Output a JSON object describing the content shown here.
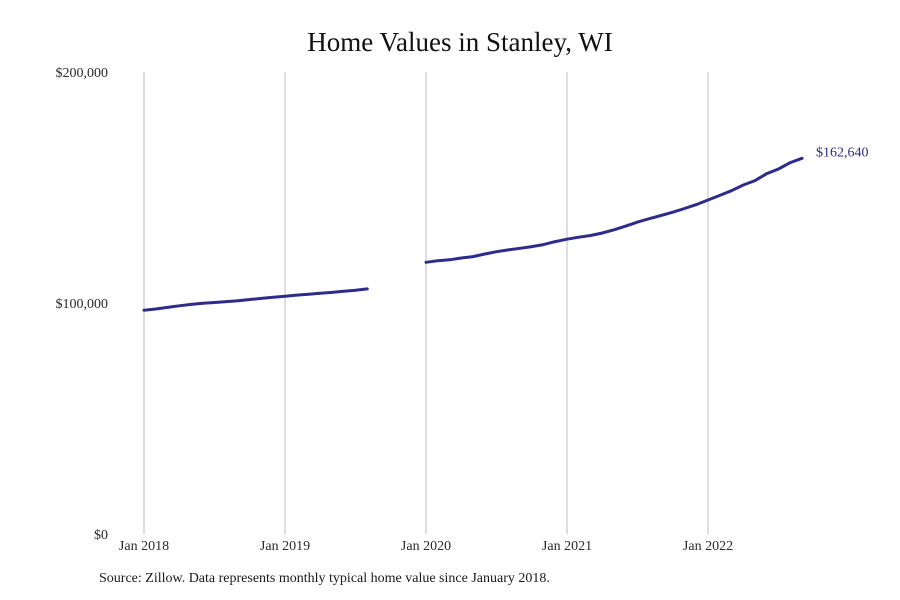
{
  "chart_data": {
    "type": "line",
    "title": "Home Values in Stanley, WI",
    "xlabel": "",
    "ylabel": "",
    "ylim": [
      0,
      200000
    ],
    "y_ticks": [
      {
        "value": 0,
        "label": "$0"
      },
      {
        "value": 100000,
        "label": "$100,000"
      },
      {
        "value": 200000,
        "label": "$200,000"
      }
    ],
    "xlim": [
      "2018-01",
      "2022-12"
    ],
    "x_ticks": [
      {
        "value": "2018-01",
        "label": "Jan 2018"
      },
      {
        "value": "2019-01",
        "label": "Jan 2019"
      },
      {
        "value": "2020-01",
        "label": "Jan 2020"
      },
      {
        "value": "2021-01",
        "label": "Jan 2021"
      },
      {
        "value": "2022-01",
        "label": "Jan 2022"
      }
    ],
    "grid": "vertical",
    "series": [
      {
        "color": "#2e2b8c",
        "segments": [
          [
            {
              "x": "2018-01",
              "y": 96900
            },
            {
              "x": "2018-02",
              "y": 97400
            },
            {
              "x": "2018-03",
              "y": 98100
            },
            {
              "x": "2018-04",
              "y": 98800
            },
            {
              "x": "2018-05",
              "y": 99400
            },
            {
              "x": "2018-06",
              "y": 99900
            },
            {
              "x": "2018-07",
              "y": 100200
            },
            {
              "x": "2018-08",
              "y": 100600
            },
            {
              "x": "2018-09",
              "y": 101000
            },
            {
              "x": "2018-10",
              "y": 101500
            },
            {
              "x": "2018-11",
              "y": 102000
            },
            {
              "x": "2018-12",
              "y": 102500
            },
            {
              "x": "2019-01",
              "y": 102900
            },
            {
              "x": "2019-02",
              "y": 103400
            },
            {
              "x": "2019-03",
              "y": 103800
            },
            {
              "x": "2019-04",
              "y": 104200
            },
            {
              "x": "2019-05",
              "y": 104600
            },
            {
              "x": "2019-06",
              "y": 105100
            },
            {
              "x": "2019-07",
              "y": 105500
            },
            {
              "x": "2019-08",
              "y": 106100
            }
          ],
          [
            {
              "x": "2020-01",
              "y": 117600
            },
            {
              "x": "2020-02",
              "y": 118300
            },
            {
              "x": "2020-03",
              "y": 118700
            },
            {
              "x": "2020-04",
              "y": 119500
            },
            {
              "x": "2020-05",
              "y": 120100
            },
            {
              "x": "2020-06",
              "y": 121200
            },
            {
              "x": "2020-07",
              "y": 122200
            },
            {
              "x": "2020-08",
              "y": 123000
            },
            {
              "x": "2020-09",
              "y": 123700
            },
            {
              "x": "2020-10",
              "y": 124400
            },
            {
              "x": "2020-11",
              "y": 125300
            },
            {
              "x": "2020-12",
              "y": 126600
            },
            {
              "x": "2021-01",
              "y": 127600
            },
            {
              "x": "2021-02",
              "y": 128500
            },
            {
              "x": "2021-03",
              "y": 129200
            },
            {
              "x": "2021-04",
              "y": 130300
            },
            {
              "x": "2021-05",
              "y": 131700
            },
            {
              "x": "2021-06",
              "y": 133300
            },
            {
              "x": "2021-07",
              "y": 135000
            },
            {
              "x": "2021-08",
              "y": 136500
            },
            {
              "x": "2021-09",
              "y": 137900
            },
            {
              "x": "2021-10",
              "y": 139300
            },
            {
              "x": "2021-11",
              "y": 140900
            },
            {
              "x": "2021-12",
              "y": 142600
            },
            {
              "x": "2022-01",
              "y": 144600
            },
            {
              "x": "2022-02",
              "y": 146600
            },
            {
              "x": "2022-03",
              "y": 148600
            },
            {
              "x": "2022-04",
              "y": 151100
            },
            {
              "x": "2022-05",
              "y": 153000
            },
            {
              "x": "2022-06",
              "y": 156000
            },
            {
              "x": "2022-07",
              "y": 158000
            },
            {
              "x": "2022-08",
              "y": 160800
            },
            {
              "x": "2022-09",
              "y": 162640
            }
          ]
        ]
      }
    ],
    "end_label": "$162,640",
    "gridline_color": "#bdbdbd"
  },
  "source_note": "Source: Zillow. Data represents monthly typical home value since January 2018."
}
